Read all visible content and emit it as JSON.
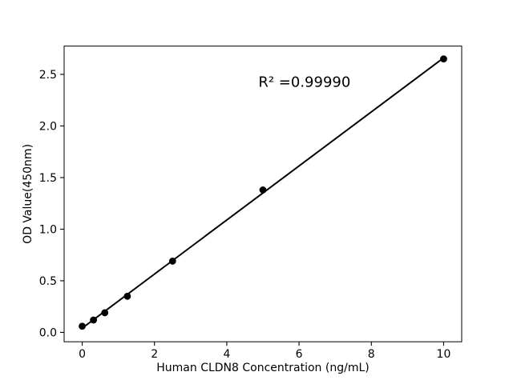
{
  "figure": {
    "background": "#ffffff",
    "foreground": "#000000"
  },
  "chart_data": {
    "type": "scatter",
    "title": "",
    "xlabel": "Human CLDN8 Concentration (ng/mL)",
    "ylabel": "OD Value(450nm)",
    "x": [
      0,
      0.3125,
      0.625,
      1.25,
      2.5,
      5,
      10
    ],
    "y": [
      0.06,
      0.12,
      0.19,
      0.35,
      0.69,
      1.38,
      2.65
    ],
    "fit_line": {
      "x": [
        0,
        10
      ],
      "y": [
        0.041,
        2.66
      ]
    },
    "annotation": {
      "text": "R² =0.99990",
      "x": 6.15,
      "y": 2.38
    },
    "xlim": [
      -0.5,
      10.5
    ],
    "ylim": [
      -0.091,
      2.774
    ],
    "xticks": [
      0,
      2,
      4,
      6,
      8,
      10
    ],
    "xtick_labels": [
      "0",
      "2",
      "4",
      "6",
      "8",
      "10"
    ],
    "yticks": [
      0,
      0.5,
      1,
      1.5,
      2,
      2.5
    ],
    "ytick_labels": [
      "0.0",
      "0.5",
      "1.0",
      "1.5",
      "2.0",
      "2.5"
    ],
    "grid": false,
    "legend": null,
    "marker_color": "#000000",
    "line_color": "#000000",
    "axes_color": "#000000"
  }
}
